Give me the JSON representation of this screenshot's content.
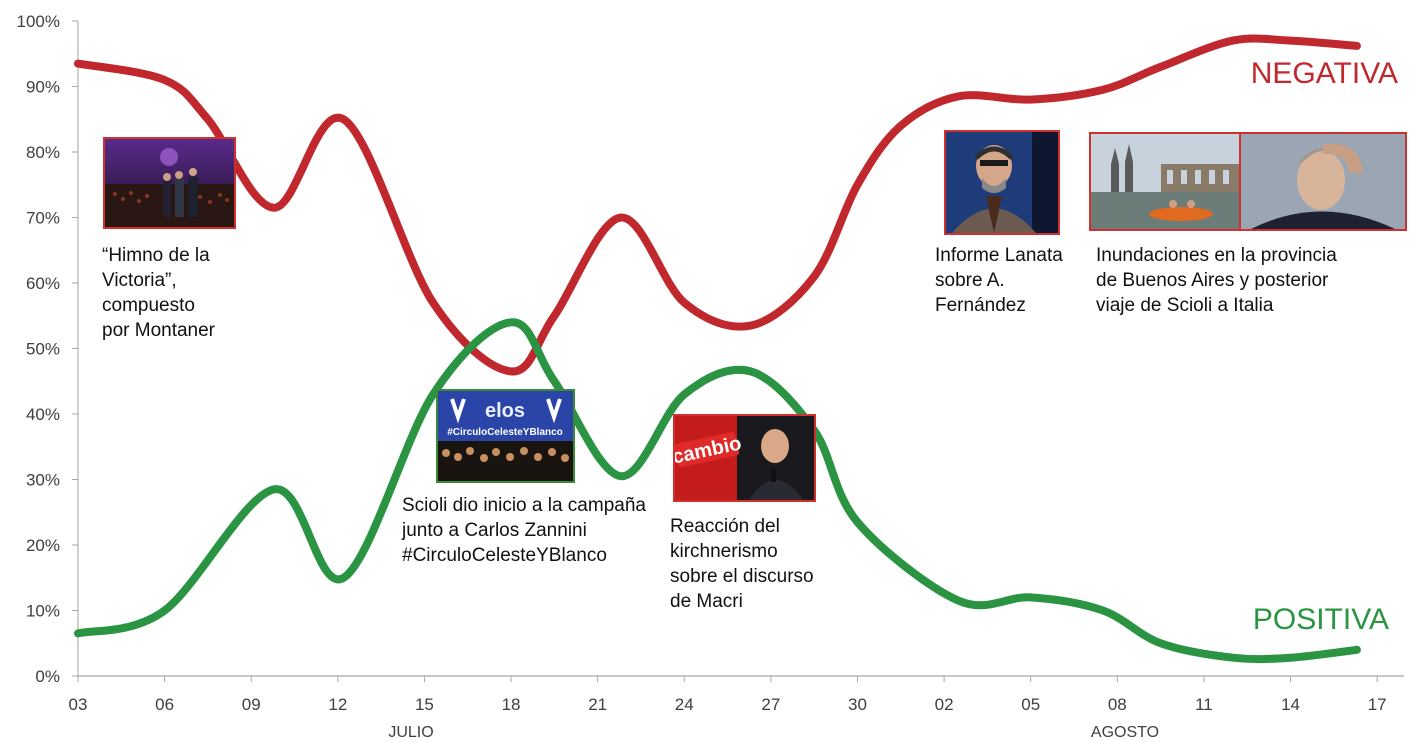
{
  "chart_data": {
    "type": "line",
    "y_ticks": [
      "0%",
      "10%",
      "20%",
      "30%",
      "40%",
      "50%",
      "60%",
      "70%",
      "80%",
      "90%",
      "100%"
    ],
    "ylim": [
      0,
      100
    ],
    "x_ticks": [
      "03",
      "06",
      "09",
      "12",
      "15",
      "18",
      "21",
      "24",
      "27",
      "30",
      "02",
      "05",
      "08",
      "11",
      "14",
      "17"
    ],
    "months": [
      "JULIO",
      "AGOSTO"
    ],
    "series": [
      {
        "name": "NEGATIVA",
        "color": "#c0282d",
        "x": [
          3,
          6,
          7.5,
          9.8,
          12.2,
          15.3,
          18,
          19.5,
          21.8,
          24,
          26.3,
          28.5,
          30,
          31.5,
          33.5,
          36,
          38.5,
          40.5,
          43,
          45,
          47.3
        ],
        "values": [
          93.5,
          91,
          85,
          71.5,
          85,
          57,
          46.5,
          55,
          70,
          57,
          53.5,
          61,
          75,
          84,
          88.5,
          88,
          89.5,
          93,
          97,
          97,
          96.2
        ]
      },
      {
        "name": "POSITIVA",
        "color": "#2a9443",
        "x": [
          3,
          6,
          9.8,
          12.2,
          15.3,
          18,
          19.5,
          21.8,
          24,
          26.3,
          28.5,
          30,
          33.5,
          36,
          38.5,
          40.5,
          43,
          45,
          47.3
        ],
        "values": [
          6.5,
          10,
          28.5,
          15,
          43,
          54,
          45,
          30.5,
          43,
          46.5,
          37.5,
          23.5,
          11.5,
          12,
          10,
          5,
          2.8,
          2.8,
          4
        ]
      }
    ]
  },
  "annotations": {
    "himno": "“Himno de la\nVictoria”,\ncompuesto\npor Montaner",
    "scioli": "Scioli dio inicio a la campaña\njunto a Carlos Zannini\n#CirculoCelesteYBlanco",
    "reaccion": "Reacción del\nkirchnerismo\nsobre el discurso\nde Macri",
    "lanata": "Informe Lanata\nsobre A.\nFernández",
    "inundaciones": "Inundaciones en la provincia\nde Buenos Aires y posterior\nviaje de Scioli a Italia"
  },
  "photo_captions": {
    "scioli_top": "elos",
    "scioli_hashtag": "#CirculoCelesteYBlanco",
    "cambio": "cambio"
  }
}
